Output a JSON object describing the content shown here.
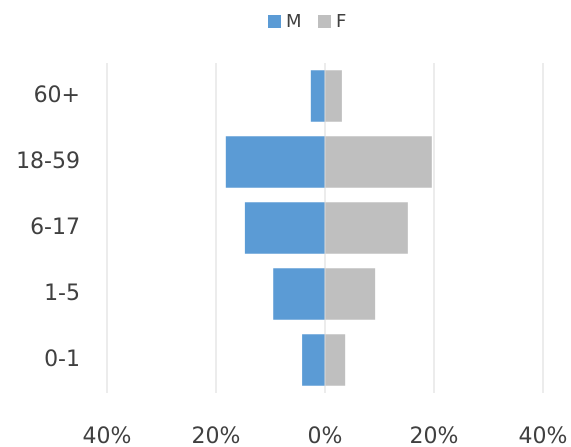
{
  "chart_data": {
    "type": "bar",
    "orientation": "horizontal",
    "stacked": true,
    "categories": [
      "0-1",
      "1-5",
      "6-17",
      "18-59",
      "60+"
    ],
    "series": [
      {
        "name": "M",
        "color": "#5b9bd5",
        "values": [
          -4.2,
          -9.5,
          -14.7,
          -18.2,
          -2.6
        ]
      },
      {
        "name": "F",
        "color": "#bfbfbf",
        "values": [
          3.7,
          9.2,
          15.2,
          19.6,
          3.1
        ]
      }
    ],
    "xlim": [
      -40,
      40
    ],
    "xticks": [
      {
        "value": -40,
        "label": "40%"
      },
      {
        "value": -20,
        "label": "20%"
      },
      {
        "value": 0,
        "label": "0%"
      },
      {
        "value": 20,
        "label": "20%"
      },
      {
        "value": 40,
        "label": "40%"
      }
    ],
    "grid": true,
    "legend": "top"
  }
}
